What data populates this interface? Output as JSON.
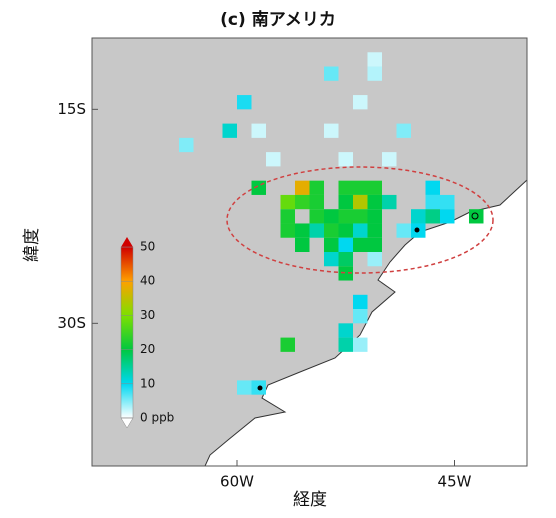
{
  "chart_data": {
    "type": "gridmap",
    "title": "(c) 南アメリカ",
    "x_label": "経度",
    "y_label": "緯度",
    "xlim": [
      -70,
      -40
    ],
    "ylim": [
      -40,
      -10
    ],
    "xticks": [
      {
        "value": -60,
        "label": "60W"
      },
      {
        "value": -45,
        "label": "45W"
      }
    ],
    "yticks": [
      {
        "value": -15,
        "label": "15S"
      },
      {
        "value": -30,
        "label": "30S"
      }
    ],
    "clim": [
      0,
      50
    ],
    "cticks": [
      {
        "value": 0,
        "label": "0 ppb"
      },
      10,
      20,
      30,
      40,
      50
    ],
    "colorscale": [
      "#ffffff",
      "#00d8f0",
      "#00c840",
      "#7ee000",
      "#ffa000",
      "#d00000"
    ],
    "land_color": "#c8c8c8",
    "x": [
      -50.5,
      -50.5,
      -53.5,
      -59.5,
      -51.5,
      -60.5,
      -58.5,
      -53.5,
      -63.5,
      -48.5,
      -57.5,
      -52.5,
      -49.5,
      -58.5,
      -55.5,
      -54.5,
      -52.5,
      -51.5,
      -50.5,
      -46.5,
      -56.5,
      -55.5,
      -54.5,
      -52.5,
      -51.5,
      -50.5,
      -49.5,
      -46.5,
      -45.5,
      -56.5,
      -54.5,
      -53.5,
      -52.5,
      -51.5,
      -50.5,
      -47.5,
      -46.5,
      -45.5,
      -43.5,
      -56.5,
      -55.5,
      -54.5,
      -53.5,
      -52.5,
      -51.5,
      -50.5,
      -48.5,
      -47.5,
      -55.5,
      -53.5,
      -52.5,
      -51.5,
      -50.5,
      -53.5,
      -52.5,
      -50.5,
      -52.5,
      -51.5,
      -51.5,
      -52.5,
      -56.5,
      -52.5,
      -51.5,
      -58.5,
      -59.5
    ],
    "y": [
      -11.5,
      -12.5,
      -12.5,
      -14.5,
      -14.5,
      -16.5,
      -16.5,
      -16.5,
      -17.5,
      -16.5,
      -18.5,
      -18.5,
      -18.5,
      -20.5,
      -20.5,
      -20.5,
      -20.5,
      -20.5,
      -20.5,
      -20.5,
      -21.5,
      -21.5,
      -21.5,
      -21.5,
      -21.5,
      -21.5,
      -21.5,
      -21.5,
      -21.5,
      -22.5,
      -22.5,
      -22.5,
      -22.5,
      -22.5,
      -22.5,
      -22.5,
      -22.5,
      -22.5,
      -22.5,
      -23.5,
      -23.5,
      -23.5,
      -23.5,
      -23.5,
      -23.5,
      -23.5,
      -23.5,
      -23.5,
      -24.5,
      -24.5,
      -24.5,
      -24.5,
      -24.5,
      -25.5,
      -25.5,
      -25.5,
      -26.5,
      -28.5,
      -29.5,
      -30.5,
      -31.5,
      -31.5,
      -31.5,
      -34.5,
      -34.5
    ],
    "values": [
      2,
      3,
      6,
      9,
      2,
      12,
      2,
      2,
      5,
      5,
      2,
      2,
      2,
      20,
      38,
      22,
      22,
      22,
      22,
      10,
      28,
      24,
      22,
      20,
      34,
      20,
      14,
      8,
      8,
      22,
      22,
      20,
      22,
      22,
      20,
      12,
      16,
      10,
      20,
      22,
      20,
      14,
      22,
      20,
      12,
      20,
      6,
      10,
      20,
      20,
      10,
      20,
      20,
      12,
      18,
      4,
      20,
      10,
      6,
      12,
      22,
      14,
      4,
      8,
      6
    ]
  }
}
